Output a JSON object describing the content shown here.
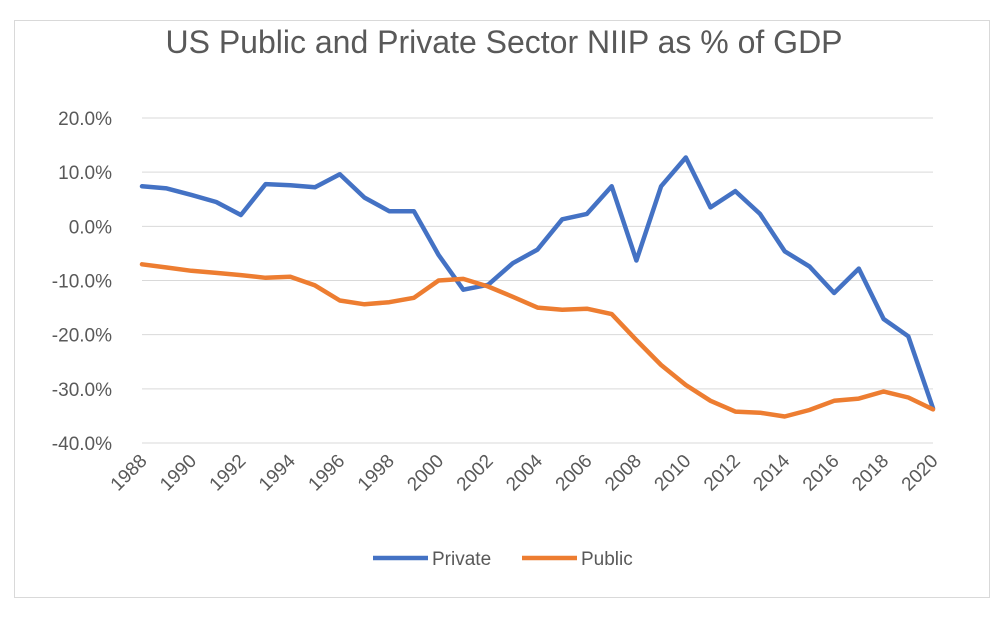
{
  "chart_data": {
    "type": "line",
    "title": "US Public and Private Sector NIIP as % of GDP",
    "xlabel": "",
    "ylabel": "",
    "x": [
      1988,
      1989,
      1990,
      1991,
      1992,
      1993,
      1994,
      1995,
      1996,
      1997,
      1998,
      1999,
      2000,
      2001,
      2002,
      2003,
      2004,
      2005,
      2006,
      2007,
      2008,
      2009,
      2010,
      2011,
      2012,
      2013,
      2014,
      2015,
      2016,
      2017,
      2018,
      2019,
      2020
    ],
    "x_tick_labels": [
      "1988",
      "1990",
      "1992",
      "1994",
      "1996",
      "1998",
      "2000",
      "2002",
      "2004",
      "2006",
      "2008",
      "2010",
      "2012",
      "2014",
      "2016",
      "2018",
      "2020"
    ],
    "y_tick_labels": [
      "20.0%",
      "10.0%",
      "0.0%",
      "-10.0%",
      "-20.0%",
      "-30.0%",
      "-40.0%"
    ],
    "ylim": [
      -40,
      20
    ],
    "grid": true,
    "legend_position": "bottom",
    "series": [
      {
        "name": "Private",
        "color": "#4472c4",
        "values": [
          7.4,
          7.0,
          5.8,
          4.5,
          2.1,
          7.8,
          7.6,
          7.2,
          9.6,
          5.3,
          2.8,
          2.8,
          -5.3,
          -11.7,
          -10.8,
          -6.8,
          -4.3,
          1.3,
          2.3,
          7.4,
          -6.3,
          7.4,
          12.7,
          3.5,
          6.5,
          2.3,
          -4.6,
          -7.4,
          -12.3,
          -7.8,
          -17.1,
          -20.3,
          -33.6
        ]
      },
      {
        "name": "Public",
        "color": "#ed7d31",
        "values": [
          -7.0,
          -7.6,
          -8.2,
          -8.6,
          -9.0,
          -9.5,
          -9.3,
          -10.9,
          -13.7,
          -14.4,
          -14.0,
          -13.2,
          -10.0,
          -9.7,
          -11.1,
          -13.0,
          -15.0,
          -15.4,
          -15.2,
          -16.2,
          -21.0,
          -25.6,
          -29.3,
          -32.2,
          -34.2,
          -34.4,
          -35.1,
          -33.9,
          -32.2,
          -31.8,
          -30.5,
          -31.6,
          -33.8
        ]
      }
    ]
  }
}
